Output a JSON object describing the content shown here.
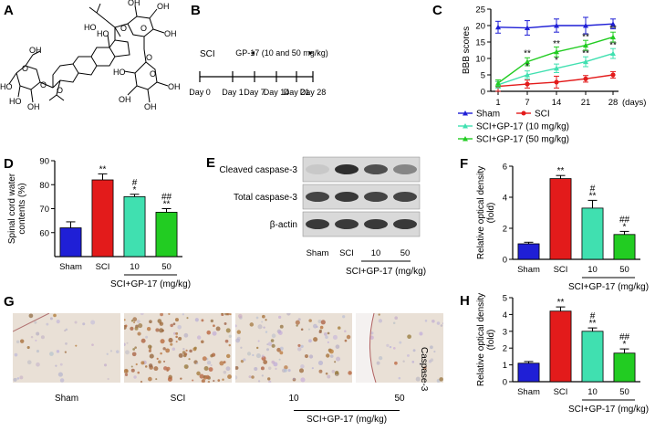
{
  "panels": {
    "A": {
      "letter": "A",
      "atom_labels": [
        "OH",
        "HO",
        "HO",
        "OH",
        "HO",
        "O",
        "O",
        "O",
        "O",
        "O",
        "OH",
        "OH",
        "O",
        "OH",
        "OH",
        "HO",
        "O",
        "OH",
        "OH",
        "HO",
        "OH",
        "OH",
        "O",
        "HO",
        "O",
        "OH"
      ]
    },
    "B": {
      "letter": "B",
      "group_label": "SCI",
      "treatment_label": "GP-17 (10 and 50 mg/kg)",
      "timepoints": [
        "Day 0",
        "Day 1",
        "Day 7",
        "Day 14",
        "Day 21",
        "Day 28"
      ]
    },
    "C": {
      "letter": "C",
      "ylabel": "BBB scores",
      "xunit": "(days)"
    },
    "D": {
      "letter": "D",
      "ylabel": "Spinal cord water contents (%)",
      "xgroup_label": "SCI+GP-17 (mg/kg)"
    },
    "E": {
      "letter": "E",
      "bands": [
        "Cleaved caspase-3",
        "Total caspase-3",
        "β-actin"
      ],
      "lanes": [
        "Sham",
        "SCI",
        "10",
        "50"
      ],
      "xgroup_label": "SCI+GP-17 (mg/kg)"
    },
    "F": {
      "letter": "F",
      "ylabel": "Relative optical density (fold)",
      "xgroup_label": "SCI+GP-17 (mg/kg)"
    },
    "G": {
      "letter": "G",
      "side_label": "Caspase-3",
      "image_labels": [
        "Sham",
        "SCI",
        "10",
        "50"
      ],
      "xgroup_label": "SCI+GP-17 (mg/kg)"
    },
    "H": {
      "letter": "H",
      "ylabel": "Relative optical density (fold)",
      "xgroup_label": "SCI+GP-17 (mg/kg)"
    }
  },
  "colors": {
    "sham": "#1f1fd6",
    "sci": "#e31b1b",
    "gp10": "#40e0b0",
    "gp50": "#22cc22"
  },
  "chart_data": [
    {
      "panel": "C",
      "type": "line",
      "x": [
        1,
        7,
        14,
        21,
        28
      ],
      "xticks": [
        "1",
        "7",
        "14",
        "21",
        "28"
      ],
      "xlabel": "(days)",
      "ylabel": "BBB scores",
      "ylim": [
        0,
        25
      ],
      "yticks": [
        0,
        5,
        10,
        15,
        20,
        25
      ],
      "series": [
        {
          "name": "Sham",
          "color": "#1f1fd6",
          "marker": "triangle",
          "values": [
            19.5,
            19.3,
            20,
            20,
            20.5
          ],
          "err": [
            1.8,
            2.2,
            2,
            2.5,
            1.5
          ]
        },
        {
          "name": "SCI",
          "color": "#e31b1b",
          "marker": "circle",
          "values": [
            1.5,
            2.2,
            2.8,
            3.8,
            5
          ],
          "err": [
            1.5,
            1.2,
            1.8,
            1,
            1
          ]
        },
        {
          "name": "SCI+GP-17 (10 mg/kg)",
          "color": "#40e0b0",
          "marker": "triangle",
          "values": [
            2,
            5,
            7,
            9,
            11.5
          ],
          "err": [
            1,
            1.2,
            1.3,
            1.5,
            1.5
          ]
        },
        {
          "name": "SCI+GP-17 (50 mg/kg)",
          "color": "#22cc22",
          "marker": "triangle",
          "values": [
            2.5,
            9,
            12,
            14,
            16.5
          ],
          "err": [
            1,
            1.2,
            1.5,
            1.5,
            1.5
          ]
        }
      ],
      "annotations": [
        {
          "x": 7,
          "y": 9,
          "text": "**"
        },
        {
          "x": 7,
          "y": 5,
          "text": "*"
        },
        {
          "x": 14,
          "y": 12,
          "text": "**"
        },
        {
          "x": 14,
          "y": 7,
          "text": "*"
        },
        {
          "x": 21,
          "y": 14,
          "text": "**"
        },
        {
          "x": 21,
          "y": 9,
          "text": "**"
        },
        {
          "x": 28,
          "y": 16.5,
          "text": "**"
        },
        {
          "x": 28,
          "y": 11.5,
          "text": "**"
        }
      ],
      "legend": "bottom"
    },
    {
      "panel": "D",
      "type": "bar",
      "categories": [
        "Sham",
        "SCI",
        "10",
        "50"
      ],
      "values": [
        62,
        82,
        75,
        68.5
      ],
      "err": [
        2.5,
        2.5,
        1,
        1.5
      ],
      "colors": [
        "#1f1fd6",
        "#e31b1b",
        "#40e0b0",
        "#22cc22"
      ],
      "ylim": [
        50,
        90
      ],
      "ytick_labels": [
        "60",
        "70",
        "80",
        "90"
      ],
      "ylabel": "Spinal cord water contents (%)",
      "annotations": [
        [
          "**"
        ],
        [
          "#",
          "*"
        ],
        [
          "##",
          "**"
        ]
      ]
    },
    {
      "panel": "F",
      "type": "bar",
      "categories": [
        "Sham",
        "SCI",
        "10",
        "50"
      ],
      "values": [
        1,
        5.2,
        3.3,
        1.6
      ],
      "err": [
        0.1,
        0.2,
        0.5,
        0.2
      ],
      "colors": [
        "#1f1fd6",
        "#e31b1b",
        "#40e0b0",
        "#22cc22"
      ],
      "ylim": [
        0,
        6
      ],
      "yticks": [
        0,
        2,
        4,
        6
      ],
      "ylabel": "Relative optical density (fold)",
      "annotations": [
        [
          "**"
        ],
        [
          "#",
          "**"
        ],
        [
          "##",
          "*"
        ]
      ]
    },
    {
      "panel": "H",
      "type": "bar",
      "categories": [
        "Sham",
        "SCI",
        "10",
        "50"
      ],
      "values": [
        1.1,
        4.2,
        3,
        1.7
      ],
      "err": [
        0.1,
        0.25,
        0.2,
        0.25
      ],
      "colors": [
        "#1f1fd6",
        "#e31b1b",
        "#40e0b0",
        "#22cc22"
      ],
      "ylim": [
        0,
        5
      ],
      "yticks": [
        0,
        1,
        2,
        3,
        4,
        5
      ],
      "ylabel": "Relative optical density (fold)",
      "annotations": [
        [
          "**"
        ],
        [
          "#",
          "**"
        ],
        [
          "##",
          "*"
        ]
      ]
    }
  ]
}
